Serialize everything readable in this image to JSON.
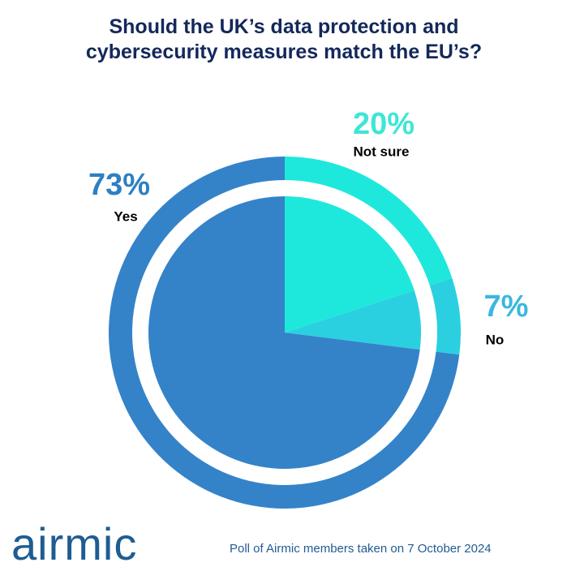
{
  "chart_data": {
    "type": "pie",
    "title": "Should the UK’s data protection and cybersecurity measures match the EU’s?",
    "categories": [
      "Not sure",
      "No",
      "Yes"
    ],
    "values": [
      20,
      7,
      73
    ],
    "value_labels": [
      "20%",
      "7%",
      "73%"
    ],
    "colors": [
      "#1ee8dc",
      "#2ad0e0",
      "#3483c9"
    ],
    "label_colors": [
      "#3ee6d6",
      "#3ab8de",
      "#2e7fc1"
    ]
  },
  "footer": {
    "logo": "airmic",
    "note": "Poll of Airmic members taken on 7 October 2024"
  }
}
